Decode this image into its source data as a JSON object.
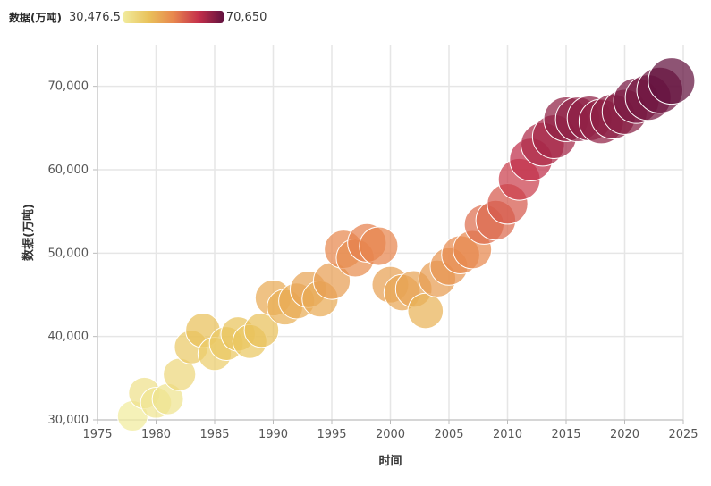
{
  "chart_data": {
    "type": "scatter",
    "title": "",
    "xlabel": "时间",
    "ylabel": "数据(万吨)",
    "xlim": [
      1975,
      2025
    ],
    "ylim": [
      30000,
      75000
    ],
    "xticks": [
      1975,
      1980,
      1985,
      1990,
      1995,
      2000,
      2005,
      2010,
      2015,
      2020,
      2025
    ],
    "yticks": [
      30000,
      40000,
      50000,
      60000,
      70000
    ],
    "xtick_labels": [
      "1975",
      "1980",
      "1985",
      "1990",
      "1995",
      "2000",
      "2005",
      "2010",
      "2015",
      "2020",
      "2025"
    ],
    "ytick_labels": [
      "30,000",
      "40,000",
      "50,000",
      "60,000",
      "70,000"
    ],
    "grid": true,
    "legend": {
      "title": "数据(万吨)",
      "min_label": "30,476.5",
      "max_label": "70,650",
      "min": 30476.5,
      "max": 70650,
      "colors": [
        "#f1eb9d",
        "#e9c25a",
        "#e8874e",
        "#c5304b",
        "#62123f"
      ],
      "placement": "top-left"
    },
    "x": [
      1978,
      1979,
      1980,
      1981,
      1982,
      1983,
      1984,
      1985,
      1986,
      1987,
      1988,
      1989,
      1990,
      1991,
      1992,
      1993,
      1994,
      1995,
      1996,
      1997,
      1998,
      1999,
      2000,
      2001,
      2002,
      2003,
      2004,
      2005,
      2006,
      2007,
      2008,
      2009,
      2010,
      2011,
      2012,
      2013,
      2014,
      2015,
      2016,
      2017,
      2018,
      2019,
      2020,
      2021,
      2022,
      2023,
      2024
    ],
    "y": [
      30476.5,
      33212,
      32056,
      32502,
      35450,
      38728,
      40731,
      37911,
      39151,
      40298,
      39408,
      40755,
      44624,
      43529,
      44266,
      45649,
      44510,
      46662,
      50454,
      49417,
      51230,
      50839,
      46218,
      45264,
      45706,
      43070,
      46947,
      48402,
      49804,
      50414,
      53434,
      53941,
      55911,
      58849,
      61223,
      63048,
      63965,
      66060,
      66044,
      66161,
      65789,
      66384,
      66949,
      68285,
      68653,
      69541,
      70650
    ]
  }
}
